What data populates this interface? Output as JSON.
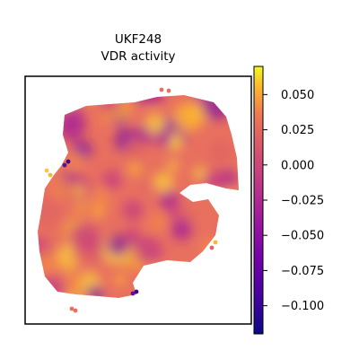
{
  "chart_data": {
    "type": "heatmap",
    "title_line1": "UKF248",
    "title_line2": "VDR activity",
    "xlabel": "",
    "ylabel": "",
    "colormap": "plasma",
    "colorbar": {
      "vmin": -0.12,
      "vmax": 0.07,
      "ticks": [
        0.05,
        0.025,
        0.0,
        -0.025,
        -0.05,
        -0.075,
        -0.1
      ],
      "tick_labels": [
        "0.050",
        "0.025",
        "0.000",
        "−0.025",
        "−0.050",
        "−0.075",
        "−0.100"
      ]
    },
    "grid": false,
    "legend": "none"
  }
}
